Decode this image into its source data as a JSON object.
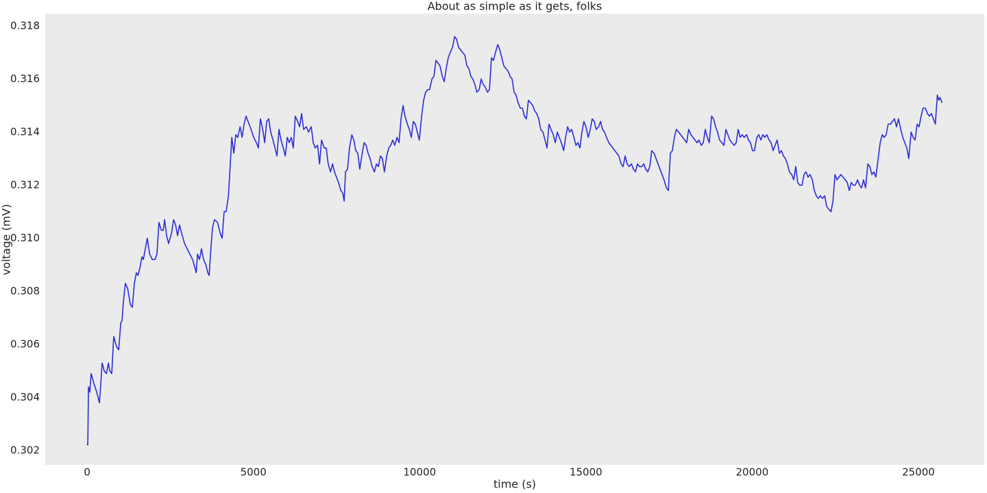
{
  "chart_data": {
    "type": "line",
    "title": "About as simple as it gets, folks",
    "xlabel": "time (s)",
    "ylabel": "voltage (mV)",
    "color": "#2b2bd9",
    "xlim": [
      -1260,
      26980
    ],
    "ylim": [
      0.30146,
      0.31846
    ],
    "xticks": [
      0,
      5000,
      10000,
      15000,
      20000,
      25000
    ],
    "yticks": [
      0.302,
      0.304,
      0.306,
      0.308,
      {
        "value": 0.31,
        "label": "0.310"
      },
      0.312,
      0.314,
      0.316,
      0.318
    ],
    "grid": false,
    "x": [
      0,
      20,
      40,
      80,
      120,
      210,
      290,
      370,
      410,
      450,
      515,
      580,
      640,
      680,
      740,
      800,
      890,
      950,
      1010,
      1050,
      1090,
      1150,
      1220,
      1300,
      1360,
      1420,
      1480,
      1530,
      1590,
      1650,
      1690,
      1750,
      1810,
      1880,
      1960,
      2040,
      2100,
      2160,
      2230,
      2290,
      2330,
      2390,
      2450,
      2540,
      2600,
      2660,
      2720,
      2780,
      2840,
      2930,
      3010,
      3090,
      3170,
      3240,
      3280,
      3320,
      3380,
      3440,
      3500,
      3570,
      3630,
      3670,
      3710,
      3770,
      3830,
      3920,
      4000,
      4060,
      4120,
      4180,
      4250,
      4310,
      4350,
      4410,
      4470,
      4530,
      4600,
      4660,
      4720,
      4780,
      4840,
      4930,
      5010,
      5090,
      5150,
      5210,
      5280,
      5340,
      5400,
      5460,
      5520,
      5590,
      5650,
      5710,
      5770,
      5830,
      5900,
      5960,
      6020,
      6080,
      6140,
      6200,
      6260,
      6330,
      6390,
      6450,
      6510,
      6590,
      6660,
      6740,
      6800,
      6860,
      6930,
      6990,
      7050,
      7130,
      7190,
      7250,
      7320,
      7380,
      7440,
      7500,
      7560,
      7630,
      7690,
      7730,
      7770,
      7830,
      7890,
      7960,
      8020,
      8080,
      8140,
      8200,
      8260,
      8330,
      8390,
      8450,
      8510,
      8570,
      8640,
      8700,
      8760,
      8820,
      8880,
      8940,
      9010,
      9070,
      9130,
      9190,
      9250,
      9320,
      9380,
      9440,
      9500,
      9560,
      9630,
      9690,
      9750,
      9810,
      9870,
      9930,
      9990,
      10060,
      10120,
      10180,
      10240,
      10300,
      10370,
      10430,
      10490,
      10550,
      10610,
      10680,
      10740,
      10800,
      10860,
      10920,
      10990,
      11050,
      11110,
      11170,
      11230,
      11290,
      11360,
      11420,
      11480,
      11540,
      11600,
      11660,
      11720,
      11790,
      11850,
      11910,
      11970,
      12040,
      12100,
      12160,
      12220,
      12280,
      12350,
      12410,
      12470,
      12530,
      12590,
      12660,
      12720,
      12780,
      12840,
      12900,
      12960,
      13030,
      13090,
      13150,
      13210,
      13270,
      13340,
      13400,
      13460,
      13520,
      13580,
      13640,
      13710,
      13770,
      13830,
      13890,
      13950,
      14020,
      14080,
      14140,
      14200,
      14260,
      14330,
      14390,
      14450,
      14510,
      14570,
      14640,
      14700,
      14760,
      14820,
      14880,
      14940,
      15000,
      15070,
      15130,
      15190,
      15250,
      15310,
      15380,
      15440,
      15500,
      15560,
      15620,
      15690,
      15750,
      15810,
      15870,
      15930,
      15990,
      16060,
      16120,
      16180,
      16240,
      16300,
      16370,
      16430,
      16490,
      16550,
      16610,
      16680,
      16740,
      16800,
      16860,
      16920,
      16980,
      17050,
      17110,
      17170,
      17230,
      17290,
      17350,
      17420,
      17480,
      17540,
      17600,
      17660,
      17720,
      17790,
      17850,
      17910,
      17970,
      18030,
      18090,
      18160,
      18220,
      18280,
      18340,
      18400,
      18470,
      18530,
      18590,
      18650,
      18710,
      18780,
      18840,
      18900,
      18960,
      19020,
      19090,
      19150,
      19210,
      19270,
      19330,
      19390,
      19460,
      19520,
      19580,
      19640,
      19700,
      19760,
      19830,
      19890,
      19950,
      20010,
      20070,
      20140,
      20200,
      20260,
      20320,
      20380,
      20440,
      20510,
      20570,
      20630,
      20690,
      20750,
      20820,
      20880,
      20940,
      21000,
      21060,
      21120,
      21190,
      21250,
      21310,
      21370,
      21430,
      21500,
      21560,
      21620,
      21680,
      21740,
      21810,
      21870,
      21930,
      21990,
      22050,
      22120,
      22180,
      22240,
      22300,
      22370,
      22430,
      22490,
      22550,
      22610,
      22670,
      22730,
      22800,
      22860,
      22920,
      22980,
      23040,
      23100,
      23170,
      23230,
      23290,
      23350,
      23410,
      23480,
      23540,
      23600,
      23660,
      23720,
      23780,
      23850,
      23910,
      23970,
      24030,
      24090,
      24160,
      24220,
      24280,
      24340,
      24400,
      24470,
      24530,
      24590,
      24650,
      24710,
      24780,
      24840,
      24900,
      24960,
      25020,
      25080,
      25140,
      25210,
      25270,
      25330,
      25390,
      25450,
      25510,
      25530,
      25570,
      25610,
      25650,
      25710
    ],
    "values": [
      0.30226,
      0.30221,
      0.3044,
      0.3042,
      0.3049,
      0.3045,
      0.3042,
      0.3038,
      0.3045,
      0.3053,
      0.305,
      0.3049,
      0.3053,
      0.305,
      0.3049,
      0.3063,
      0.3059,
      0.3058,
      0.3068,
      0.3069,
      0.3076,
      0.3083,
      0.3081,
      0.3075,
      0.3074,
      0.3083,
      0.3087,
      0.3086,
      0.3089,
      0.3093,
      0.3092,
      0.3096,
      0.31,
      0.3094,
      0.3092,
      0.3092,
      0.3094,
      0.3106,
      0.3103,
      0.3103,
      0.3107,
      0.3101,
      0.3098,
      0.3102,
      0.3107,
      0.3105,
      0.3101,
      0.3105,
      0.3102,
      0.3098,
      0.3096,
      0.3094,
      0.3092,
      0.3089,
      0.3087,
      0.3094,
      0.3092,
      0.3096,
      0.3092,
      0.309,
      0.3087,
      0.3086,
      0.3094,
      0.3104,
      0.3107,
      0.3106,
      0.3102,
      0.31,
      0.311,
      0.311,
      0.3116,
      0.3129,
      0.3138,
      0.3132,
      0.3139,
      0.3138,
      0.3142,
      0.3138,
      0.3143,
      0.3146,
      0.3144,
      0.3141,
      0.3138,
      0.3136,
      0.3134,
      0.3145,
      0.3141,
      0.3136,
      0.3144,
      0.3145,
      0.314,
      0.3137,
      0.3134,
      0.3131,
      0.3141,
      0.3137,
      0.3134,
      0.3131,
      0.3138,
      0.3136,
      0.3138,
      0.3134,
      0.3146,
      0.3144,
      0.3142,
      0.3147,
      0.3141,
      0.3142,
      0.314,
      0.3142,
      0.3136,
      0.3134,
      0.3135,
      0.3128,
      0.3137,
      0.3134,
      0.3134,
      0.3128,
      0.3125,
      0.3128,
      0.3125,
      0.3123,
      0.3121,
      0.3118,
      0.3117,
      0.3114,
      0.3125,
      0.3126,
      0.3134,
      0.3139,
      0.3137,
      0.3133,
      0.3132,
      0.3126,
      0.3131,
      0.3136,
      0.3135,
      0.3132,
      0.313,
      0.3127,
      0.3125,
      0.3128,
      0.3127,
      0.3131,
      0.313,
      0.3125,
      0.3131,
      0.3134,
      0.3135,
      0.3137,
      0.3135,
      0.3138,
      0.3136,
      0.3145,
      0.315,
      0.3146,
      0.3143,
      0.3141,
      0.3138,
      0.3144,
      0.3143,
      0.314,
      0.3137,
      0.3146,
      0.3152,
      0.3155,
      0.3156,
      0.3156,
      0.316,
      0.3161,
      0.3167,
      0.3166,
      0.3165,
      0.3161,
      0.3159,
      0.3164,
      0.3168,
      0.317,
      0.3172,
      0.3176,
      0.3175,
      0.3172,
      0.3171,
      0.317,
      0.3169,
      0.3165,
      0.3164,
      0.3161,
      0.316,
      0.3158,
      0.3155,
      0.3156,
      0.316,
      0.3158,
      0.3157,
      0.3155,
      0.3156,
      0.3168,
      0.3167,
      0.317,
      0.3173,
      0.3171,
      0.3168,
      0.3165,
      0.3164,
      0.3163,
      0.3161,
      0.316,
      0.3155,
      0.3154,
      0.3151,
      0.3149,
      0.3149,
      0.3146,
      0.3145,
      0.3152,
      0.3151,
      0.315,
      0.3148,
      0.3147,
      0.3145,
      0.3141,
      0.314,
      0.3137,
      0.3134,
      0.3143,
      0.3141,
      0.3139,
      0.3136,
      0.314,
      0.3138,
      0.3136,
      0.3133,
      0.3138,
      0.3142,
      0.314,
      0.3141,
      0.3138,
      0.3135,
      0.3136,
      0.3134,
      0.314,
      0.3144,
      0.3142,
      0.3138,
      0.3141,
      0.3145,
      0.3144,
      0.3141,
      0.3142,
      0.3144,
      0.3141,
      0.314,
      0.3138,
      0.3136,
      0.3135,
      0.3134,
      0.3133,
      0.3132,
      0.3131,
      0.3128,
      0.3127,
      0.3131,
      0.3128,
      0.3127,
      0.3128,
      0.3126,
      0.3125,
      0.3128,
      0.3127,
      0.3127,
      0.3128,
      0.3126,
      0.3125,
      0.3127,
      0.3133,
      0.3132,
      0.313,
      0.3128,
      0.3126,
      0.3124,
      0.3122,
      0.3119,
      0.3118,
      0.3132,
      0.3133,
      0.3138,
      0.3141,
      0.314,
      0.3139,
      0.3138,
      0.3137,
      0.3136,
      0.3141,
      0.3139,
      0.3138,
      0.3137,
      0.3136,
      0.3137,
      0.3135,
      0.3136,
      0.3141,
      0.3138,
      0.3136,
      0.3146,
      0.3145,
      0.3142,
      0.314,
      0.3137,
      0.3136,
      0.3135,
      0.3141,
      0.3139,
      0.3137,
      0.3136,
      0.3135,
      0.3136,
      0.3141,
      0.3138,
      0.3139,
      0.3138,
      0.3139,
      0.3137,
      0.3136,
      0.3133,
      0.3133,
      0.3138,
      0.3139,
      0.3137,
      0.3139,
      0.3138,
      0.3139,
      0.3137,
      0.3136,
      0.3133,
      0.3135,
      0.3137,
      0.3132,
      0.3133,
      0.3131,
      0.313,
      0.3128,
      0.3125,
      0.3124,
      0.3122,
      0.3127,
      0.3121,
      0.312,
      0.312,
      0.3124,
      0.3125,
      0.3123,
      0.3124,
      0.3122,
      0.3118,
      0.3116,
      0.3115,
      0.3116,
      0.3115,
      0.3116,
      0.3112,
      0.3111,
      0.311,
      0.3114,
      0.3124,
      0.3122,
      0.3123,
      0.3124,
      0.3123,
      0.3122,
      0.3121,
      0.3118,
      0.3121,
      0.312,
      0.312,
      0.3122,
      0.312,
      0.3119,
      0.3122,
      0.3119,
      0.3128,
      0.3127,
      0.3124,
      0.3125,
      0.3123,
      0.3129,
      0.3136,
      0.3139,
      0.3138,
      0.3139,
      0.3143,
      0.3143,
      0.3144,
      0.3145,
      0.3142,
      0.3145,
      0.3141,
      0.3138,
      0.3136,
      0.3134,
      0.313,
      0.314,
      0.3138,
      0.3137,
      0.3143,
      0.3142,
      0.3146,
      0.3149,
      0.3149,
      0.3147,
      0.3146,
      0.3147,
      0.3145,
      0.3143,
      0.3147,
      0.3154,
      0.3152,
      0.3153,
      0.3151
    ]
  }
}
